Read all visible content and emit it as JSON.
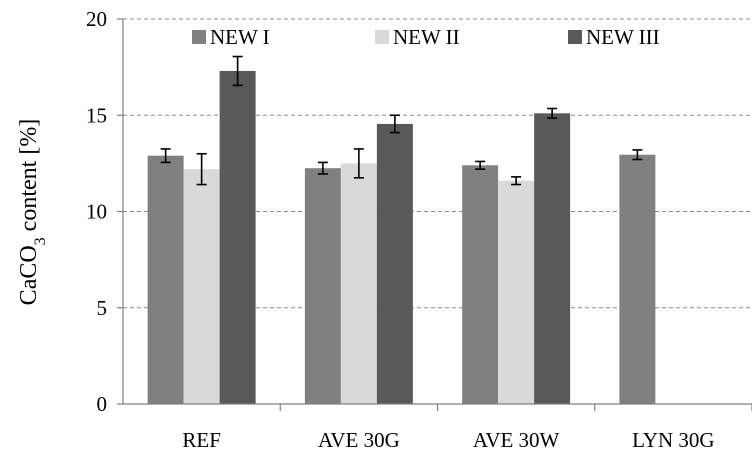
{
  "chart_data": {
    "type": "bar",
    "ylabel": {
      "prefix": "CaCO",
      "subscript": "3",
      "suffix": " content [%]"
    },
    "ylim": [
      0,
      20
    ],
    "yticks": [
      0,
      5,
      10,
      15,
      20
    ],
    "grid": "horizontal-dashed",
    "legend_position": "top",
    "categories": [
      "REF",
      "AVE 30G",
      "AVE 30W",
      "LYN 30G"
    ],
    "series": [
      {
        "name": "NEW I",
        "color": "#808080",
        "values": [
          12.9,
          12.25,
          12.4,
          12.95
        ],
        "errors": [
          0.35,
          0.3,
          0.2,
          0.25
        ]
      },
      {
        "name": "NEW II",
        "color": "#d9d9d9",
        "values": [
          12.2,
          12.5,
          11.6,
          null
        ],
        "errors": [
          0.8,
          0.75,
          0.2,
          null
        ]
      },
      {
        "name": "NEW III",
        "color": "#595959",
        "values": [
          17.3,
          14.55,
          15.1,
          null
        ],
        "errors": [
          0.75,
          0.45,
          0.25,
          null
        ]
      }
    ]
  }
}
